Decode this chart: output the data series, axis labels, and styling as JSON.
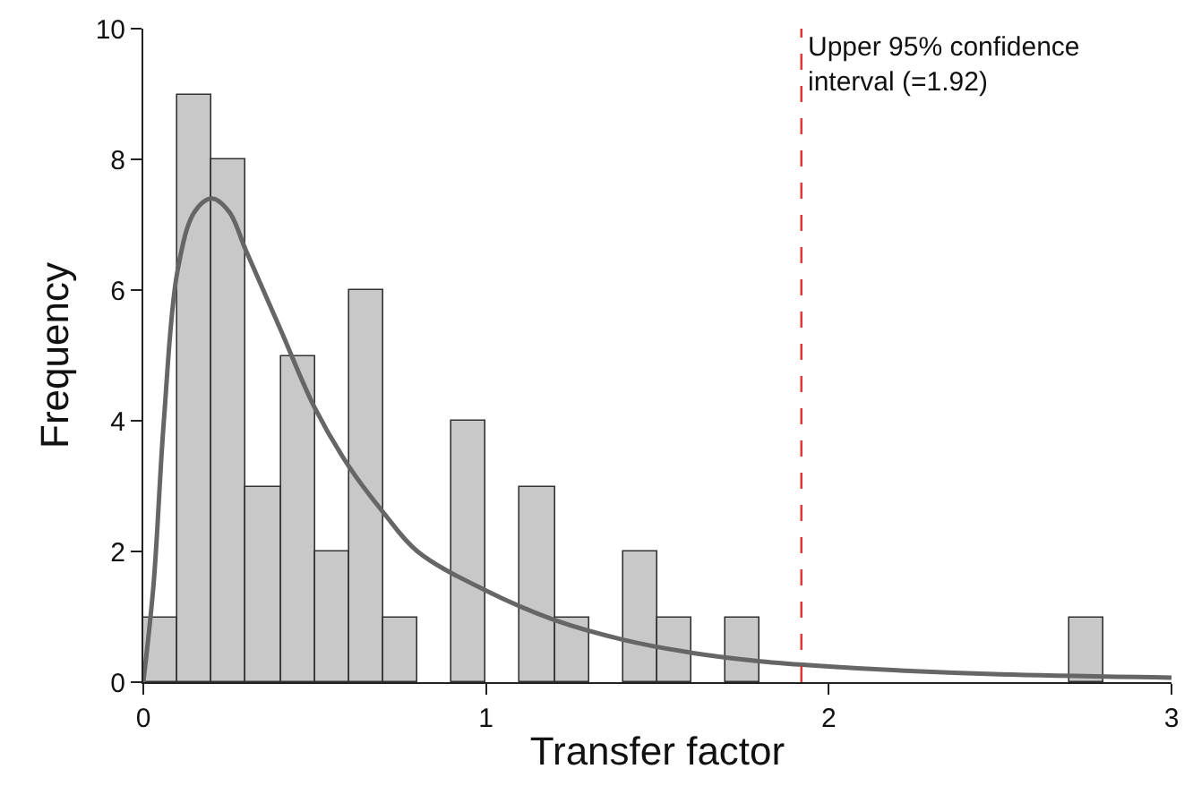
{
  "chart_data": {
    "type": "histogram",
    "xlabel": "Transfer factor",
    "ylabel": "Frequency",
    "bins": [
      0,
      0.1,
      0.2,
      0.3,
      0.4,
      0.5,
      0.6,
      0.7,
      0.8,
      0.9,
      1.0,
      1.1,
      1.2,
      1.3,
      1.4,
      1.5,
      1.6,
      1.7,
      1.8,
      1.9,
      2.0,
      2.1,
      2.2,
      2.3,
      2.4,
      2.5,
      2.6,
      2.7,
      2.8,
      2.9,
      3.0
    ],
    "values": [
      1,
      9,
      8,
      3,
      5,
      2,
      6,
      1,
      0,
      4,
      0,
      3,
      1,
      0,
      2,
      1,
      0,
      1,
      0,
      0,
      0,
      0,
      0,
      0,
      0,
      0,
      0,
      1,
      0,
      0
    ],
    "color": "#c8c8c8",
    "series": [
      {
        "type": "line",
        "color": "#666666",
        "x": [
          0,
          0.03,
          0.06,
          0.1,
          0.15,
          0.2,
          0.25,
          0.3,
          0.4,
          0.5,
          0.6,
          0.7,
          0.8,
          1.0,
          1.2,
          1.4,
          1.6,
          1.8,
          2.0,
          2.2,
          2.5,
          3.0
        ],
        "values": [
          0,
          1.5,
          4,
          6.3,
          7.2,
          7.4,
          7.2,
          6.6,
          5.4,
          4.2,
          3.3,
          2.6,
          2.0,
          1.4,
          0.95,
          0.65,
          0.45,
          0.32,
          0.24,
          0.18,
          0.12,
          0.07
        ]
      }
    ],
    "ref_lines": [
      {
        "axis": "x",
        "value": 1.92,
        "label": "Upper 95% confidence\ninterval (=1.92)",
        "color": "#e03030",
        "line_style": "dashed"
      }
    ],
    "xlim": [
      0,
      3
    ],
    "xticks": [
      0,
      1,
      2,
      3
    ],
    "ylim": [
      0,
      10
    ],
    "yticks": [
      0,
      2,
      4,
      6,
      8,
      10
    ]
  }
}
